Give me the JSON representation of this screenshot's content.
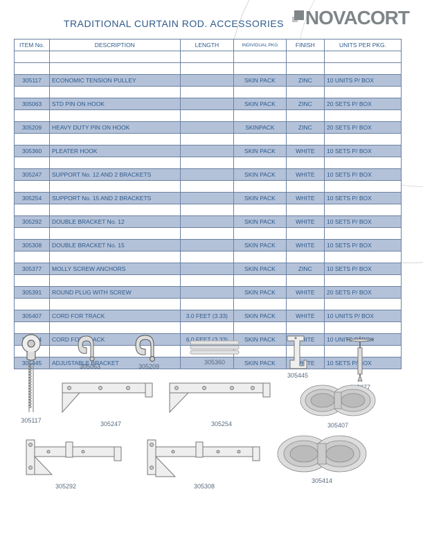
{
  "page": {
    "title": "TRADITIONAL CURTAIN ROD. ACCESSORIES"
  },
  "brand": {
    "name": "NOVACORT"
  },
  "table": {
    "headers": {
      "item": "ITEM No.",
      "desc": "DESCRIPTION",
      "length": "LENGTH",
      "pkg": "INDIVIDUAL PKG",
      "finish": "FINISH",
      "upp": "UNITS PER PKG."
    },
    "rows": [
      {
        "item": "305117",
        "desc": "ECONOMIC TENSION PULLEY",
        "length": "",
        "pkg": "SKIN PACK",
        "finish": "ZINC",
        "upp": "10 UNITS P/ BOX"
      },
      {
        "item": "305063",
        "desc": "STD PIN ON HOOK",
        "length": "",
        "pkg": "SKIN PACK",
        "finish": "ZINC",
        "upp": "20 SETS P/ BOX"
      },
      {
        "item": "305209",
        "desc": "HEAVY DUTY PIN ON HOOK",
        "length": "",
        "pkg": "SKINPACK",
        "finish": "ZINC",
        "upp": "20 SETS P/ BOX"
      },
      {
        "item": "305360",
        "desc": "PLEATER HOOK",
        "length": "",
        "pkg": "SKIN PACK",
        "finish": "WHITE",
        "upp": "10 SETS P/ BOX"
      },
      {
        "item": "305247",
        "desc": "SUPPORT No. 12 AND 2 BRACKETS",
        "length": "",
        "pkg": "SKIN PACK",
        "finish": "WHITE",
        "upp": "10 SETS P/ BOX"
      },
      {
        "item": "305254",
        "desc": "SUPPORT No. 15 AND 2 BRACKETS",
        "length": "",
        "pkg": "SKIN PACK",
        "finish": "WHITE",
        "upp": "10 SETS P/ BOX"
      },
      {
        "item": "305292",
        "desc": "DOUBLE BRACKET No. 12",
        "length": "",
        "pkg": "SKIN PACK",
        "finish": "WHITE",
        "upp": "10 SETS P/ BOX"
      },
      {
        "item": "305308",
        "desc": "DOUBLE BRACKET No. 15",
        "length": "",
        "pkg": "SKIN PACK",
        "finish": "WHITE",
        "upp": "10 SETS P/ BOX"
      },
      {
        "item": "305377",
        "desc": "MOLLY SCREW ANCHORS",
        "length": "",
        "pkg": "SKIN PACK",
        "finish": "ZINC",
        "upp": "10 SETS P/ BOX"
      },
      {
        "item": "305391",
        "desc": "ROUND PLUG WITH SCREW",
        "length": "",
        "pkg": "SKIN PACK",
        "finish": "WHITE",
        "upp": "20 SETS P/ BOX"
      },
      {
        "item": "305407",
        "desc": "CORD FOR TRACK",
        "length": "3.0 FEET (3.33)",
        "pkg": "SKIN PACK",
        "finish": "WHITE",
        "upp": "10 UNITS P/ BOX"
      },
      {
        "item": "305414",
        "desc": "CORD FOR TRACK",
        "length": "6.0 FEET (3.33)",
        "pkg": "SKIN PACK",
        "finish": "WHITE",
        "upp": "10 UNITS P/ BOX"
      },
      {
        "item": "305445",
        "desc": "ADJUSTABLE BRACKET",
        "length": "",
        "pkg": "SKIN PACK",
        "finish": "WHITE",
        "upp": "10 SETS P/ BOX"
      }
    ],
    "colors": {
      "row_bg": "#b4c2d9",
      "border": "#6a80a0",
      "text": "#2d5a8c"
    }
  },
  "thumbnails": {
    "l305063": "305063",
    "l305209": "305209",
    "l305360": "305360",
    "l305445": "305445",
    "l305377": "305377",
    "l305117": "305117",
    "l305247": "305247",
    "l305254": "305254",
    "l305407": "305407",
    "l305292": "305292",
    "l305308": "305308",
    "l305414": "305414"
  }
}
